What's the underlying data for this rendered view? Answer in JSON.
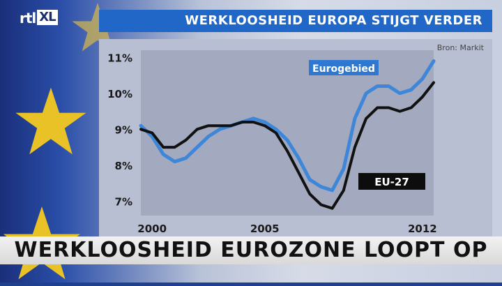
{
  "header": {
    "logo_text": "rtl",
    "logo_box": "XL",
    "title": "WERKLOOSHEID EUROPA STIJGT VERDER"
  },
  "lower_third": {
    "text": "WERKLOOSHEID EUROZONE LOOPT OP"
  },
  "colors": {
    "eurozone": "#3d86d8",
    "eu27": "#111111",
    "titlebar": "#2067c7"
  },
  "chart_data": {
    "type": "line",
    "source_note": "Bron: Markit",
    "x_ticks": [
      "2000",
      "2005",
      "2012"
    ],
    "y_ticks": [
      "7%",
      "8%",
      "9%",
      "10%",
      "11%"
    ],
    "ylim": [
      6.6,
      11.2
    ],
    "xlim": [
      1999.5,
      2012.5
    ],
    "legend": {
      "eurozone": "Eurogebied",
      "eu27": "EU-27"
    },
    "series": [
      {
        "name": "Eurogebied",
        "color": "#3d86d8",
        "x": [
          1999.5,
          2000.0,
          2000.5,
          2001.0,
          2001.5,
          2002.0,
          2002.5,
          2003.0,
          2003.5,
          2004.0,
          2004.5,
          2005.0,
          2005.5,
          2006.0,
          2006.5,
          2007.0,
          2007.5,
          2008.0,
          2008.5,
          2009.0,
          2009.5,
          2010.0,
          2010.5,
          2011.0,
          2011.5,
          2012.0,
          2012.5
        ],
        "y": [
          9.1,
          8.8,
          8.3,
          8.1,
          8.2,
          8.5,
          8.8,
          9.0,
          9.1,
          9.2,
          9.3,
          9.2,
          9.0,
          8.7,
          8.2,
          7.6,
          7.4,
          7.3,
          7.9,
          9.3,
          10.0,
          10.2,
          10.2,
          10.0,
          10.1,
          10.4,
          10.9
        ]
      },
      {
        "name": "EU-27",
        "color": "#111111",
        "x": [
          1999.5,
          2000.0,
          2000.5,
          2001.0,
          2001.5,
          2002.0,
          2002.5,
          2003.0,
          2003.5,
          2004.0,
          2004.5,
          2005.0,
          2005.5,
          2006.0,
          2006.5,
          2007.0,
          2007.5,
          2008.0,
          2008.5,
          2009.0,
          2009.5,
          2010.0,
          2010.5,
          2011.0,
          2011.5,
          2012.0,
          2012.5
        ],
        "y": [
          9.0,
          8.9,
          8.5,
          8.5,
          8.7,
          9.0,
          9.1,
          9.1,
          9.1,
          9.2,
          9.2,
          9.1,
          8.9,
          8.4,
          7.8,
          7.2,
          6.9,
          6.8,
          7.3,
          8.5,
          9.3,
          9.6,
          9.6,
          9.5,
          9.6,
          9.9,
          10.3
        ]
      }
    ]
  }
}
